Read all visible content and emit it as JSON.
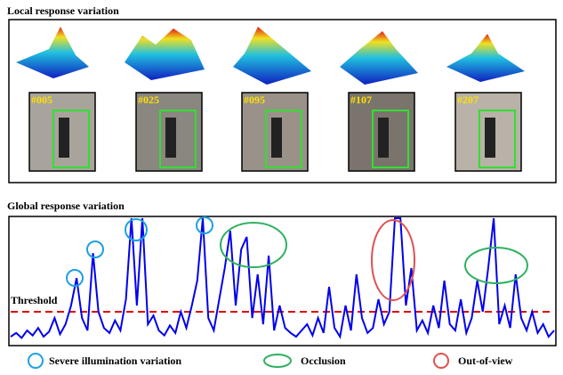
{
  "top": {
    "title": "Local response variation",
    "frames": [
      "#005",
      "#025",
      "#095",
      "#107",
      "#207"
    ]
  },
  "chart_data": {
    "type": "line",
    "title": "Global response variation",
    "threshold_label": "Threshold",
    "threshold": 0.25,
    "color": "#0000ee",
    "threshold_color": "#e00000",
    "ylim": [
      0,
      1
    ],
    "values": [
      0.05,
      0.08,
      0.04,
      0.1,
      0.06,
      0.12,
      0.05,
      0.09,
      0.2,
      0.07,
      0.15,
      0.3,
      0.52,
      0.2,
      0.1,
      0.72,
      0.25,
      0.12,
      0.08,
      0.18,
      0.1,
      0.35,
      1.0,
      0.3,
      1.0,
      0.15,
      0.22,
      0.1,
      0.06,
      0.14,
      0.08,
      0.25,
      0.12,
      0.3,
      0.5,
      1.0,
      0.2,
      0.1,
      0.35,
      0.6,
      0.9,
      0.3,
      0.75,
      0.85,
      0.2,
      0.55,
      0.15,
      0.7,
      0.1,
      0.3,
      0.12,
      0.08,
      0.05,
      0.1,
      0.15,
      0.06,
      0.2,
      0.08,
      0.45,
      0.12,
      0.05,
      0.3,
      0.1,
      0.55,
      0.2,
      0.08,
      0.12,
      0.35,
      0.15,
      0.25,
      1.0,
      1.0,
      0.3,
      0.6,
      0.1,
      0.18,
      0.08,
      0.3,
      0.12,
      0.5,
      0.15,
      0.1,
      0.35,
      0.08,
      0.2,
      0.5,
      0.25,
      0.6,
      1.0,
      0.15,
      0.3,
      0.12,
      0.55,
      0.2,
      0.1,
      0.25,
      0.08,
      0.15,
      0.05,
      0.1
    ],
    "legend": [
      "Severe illumination variation",
      "Occlusion",
      "Out-of-view"
    ]
  }
}
